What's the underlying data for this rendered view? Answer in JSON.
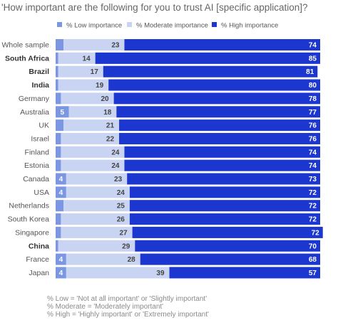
{
  "chart_data": {
    "type": "bar",
    "stacked": "horizontal",
    "title": "'How important are the following for you to trust AI [specific application]?",
    "categories": [
      "Whole sample",
      "South Africa",
      "Brazil",
      "India",
      "Germany",
      "Australia",
      "UK",
      "Israel",
      "Finland",
      "Estonia",
      "Canada",
      "USA",
      "Netherlands",
      "South Korea",
      "Singapore",
      "China",
      "France",
      "Japan"
    ],
    "bold_categories": [
      "South Africa",
      "Brazil",
      "India",
      "China"
    ],
    "series": [
      {
        "name": "% Low importance",
        "color": "#7b96e3",
        "values": [
          3,
          1,
          1,
          1,
          2,
          5,
          3,
          2,
          2,
          2,
          4,
          4,
          3,
          2,
          2,
          1,
          4,
          4
        ],
        "labels": [
          "",
          "",
          "",
          "",
          "",
          "5",
          "",
          "",
          "",
          "",
          "4",
          "4",
          "",
          "",
          "",
          "",
          "4",
          "4"
        ]
      },
      {
        "name": "% Moderate importance",
        "color": "#c9d3f2",
        "values": [
          23,
          14,
          17,
          19,
          20,
          18,
          21,
          22,
          24,
          24,
          23,
          24,
          25,
          26,
          27,
          29,
          28,
          39
        ],
        "labels": [
          "23",
          "14",
          "17",
          "19",
          "20",
          "18",
          "21",
          "22",
          "24",
          "24",
          "23",
          "24",
          "25",
          "26",
          "27",
          "29",
          "28",
          "39"
        ]
      },
      {
        "name": "% High importance",
        "color": "#1c37cf",
        "values": [
          74,
          85,
          81,
          80,
          78,
          77,
          76,
          76,
          74,
          74,
          73,
          72,
          72,
          72,
          72,
          70,
          68,
          57
        ],
        "labels": [
          "74",
          "85",
          "81",
          "80",
          "78",
          "77",
          "76",
          "76",
          "74",
          "74",
          "73",
          "72",
          "72",
          "72",
          "72",
          "70",
          "68",
          "57"
        ]
      }
    ],
    "xlim": [
      0,
      100
    ],
    "legend": "top"
  },
  "footnotes": [
    "% Low = 'Not at all important' or 'Slightly important'",
    "% Moderate = 'Moderately important'",
    "% High = 'Highly important' or 'Extremely important'"
  ]
}
